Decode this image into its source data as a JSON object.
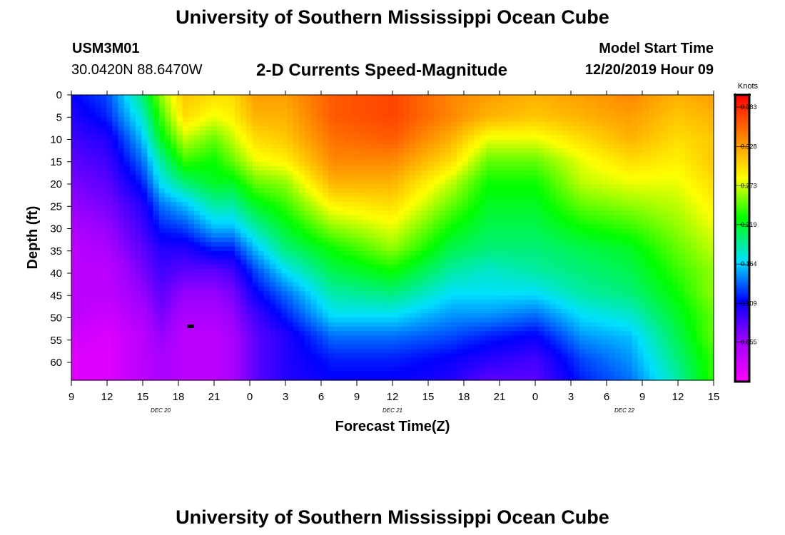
{
  "header": {
    "title": "University of Southern Mississippi Ocean Cube",
    "station_id": "USM3M01",
    "coordinates": "30.0420N 88.6470W",
    "product": "2-D Currents Speed-Magnitude",
    "start_label": "Model Start Time",
    "start_value": "12/20/2019 Hour 09"
  },
  "footer": {
    "title": "University of Southern Mississippi Ocean Cube"
  },
  "chart_data": {
    "type": "heatmap",
    "title": "2-D Currents Speed-Magnitude",
    "xlabel": "Forecast Time(Z)",
    "ylabel": "Depth (ft)",
    "x_range_hours": [
      0,
      54
    ],
    "ylim": [
      0,
      64
    ],
    "x_ticks": [
      "9",
      "12",
      "15",
      "18",
      "21",
      "0",
      "3",
      "6",
      "9",
      "12",
      "15",
      "18",
      "21",
      "0",
      "3",
      "6",
      "9",
      "12",
      "15"
    ],
    "y_ticks": [
      "0",
      "5",
      "10",
      "15",
      "20",
      "25",
      "30",
      "35",
      "40",
      "45",
      "50",
      "55",
      "60"
    ],
    "day_labels": [
      {
        "text": "DEC 20",
        "hour": 7.5
      },
      {
        "text": "DEC 21",
        "hour": 27
      },
      {
        "text": "DEC 22",
        "hour": 46.5
      }
    ],
    "colorbar": {
      "unit": "Knots",
      "min": 0.0,
      "max": 0.4,
      "ticks": [
        "0.383",
        "0.328",
        "0.273",
        "0.219",
        "0.164",
        "0.109",
        "0.055"
      ]
    },
    "marker": {
      "hour": 10,
      "depth": 52
    },
    "columns": [
      {
        "hour": 0,
        "v": [
          0.11,
          0.1,
          0.09,
          0.08,
          0.07,
          0.06,
          0.05,
          0.04,
          0.04,
          0.04,
          0.04,
          0.03,
          0.02,
          0.02
        ]
      },
      {
        "hour": 3,
        "v": [
          0.13,
          0.12,
          0.1,
          0.09,
          0.08,
          0.07,
          0.06,
          0.05,
          0.04,
          0.04,
          0.03,
          0.02,
          0.02,
          0.02
        ]
      },
      {
        "hour": 6,
        "v": [
          0.2,
          0.18,
          0.16,
          0.14,
          0.12,
          0.1,
          0.09,
          0.08,
          0.07,
          0.06,
          0.05,
          0.04,
          0.04,
          0.04
        ]
      },
      {
        "hour": 7.5,
        "v": [
          0.26,
          0.24,
          0.22,
          0.19,
          0.17,
          0.14,
          0.12,
          0.1,
          0.09,
          0.08,
          0.07,
          0.06,
          0.05,
          0.05
        ]
      },
      {
        "hour": 9.5,
        "v": [
          0.31,
          0.3,
          0.27,
          0.24,
          0.2,
          0.16,
          0.13,
          0.1,
          0.08,
          0.06,
          0.05,
          0.04,
          0.04,
          0.04
        ]
      },
      {
        "hour": 12,
        "v": [
          0.3,
          0.28,
          0.25,
          0.23,
          0.22,
          0.19,
          0.16,
          0.12,
          0.08,
          0.06,
          0.05,
          0.04,
          0.04,
          0.04
        ]
      },
      {
        "hour": 13.5,
        "v": [
          0.3,
          0.29,
          0.27,
          0.25,
          0.22,
          0.19,
          0.16,
          0.12,
          0.09,
          0.07,
          0.06,
          0.05,
          0.05,
          0.05
        ]
      },
      {
        "hour": 15.5,
        "v": [
          0.33,
          0.32,
          0.3,
          0.28,
          0.25,
          0.22,
          0.19,
          0.16,
          0.13,
          0.11,
          0.09,
          0.08,
          0.08,
          0.08
        ]
      },
      {
        "hour": 18,
        "v": [
          0.33,
          0.32,
          0.31,
          0.29,
          0.26,
          0.24,
          0.22,
          0.2,
          0.17,
          0.14,
          0.12,
          0.1,
          0.1,
          0.1
        ]
      },
      {
        "hour": 22,
        "v": [
          0.36,
          0.36,
          0.35,
          0.34,
          0.32,
          0.29,
          0.26,
          0.23,
          0.21,
          0.19,
          0.17,
          0.14,
          0.12,
          0.11
        ]
      },
      {
        "hour": 27,
        "v": [
          0.37,
          0.37,
          0.36,
          0.34,
          0.32,
          0.3,
          0.28,
          0.26,
          0.23,
          0.2,
          0.17,
          0.14,
          0.12,
          0.11
        ]
      },
      {
        "hour": 32,
        "v": [
          0.34,
          0.34,
          0.32,
          0.3,
          0.27,
          0.25,
          0.23,
          0.21,
          0.19,
          0.17,
          0.15,
          0.13,
          0.11,
          0.1
        ]
      },
      {
        "hour": 35,
        "v": [
          0.33,
          0.32,
          0.28,
          0.25,
          0.23,
          0.22,
          0.21,
          0.2,
          0.18,
          0.17,
          0.15,
          0.12,
          0.1,
          0.08
        ]
      },
      {
        "hour": 39,
        "v": [
          0.32,
          0.31,
          0.28,
          0.25,
          0.23,
          0.22,
          0.21,
          0.2,
          0.19,
          0.17,
          0.14,
          0.11,
          0.09,
          0.08
        ]
      },
      {
        "hour": 43,
        "v": [
          0.33,
          0.32,
          0.3,
          0.28,
          0.27,
          0.25,
          0.23,
          0.21,
          0.2,
          0.19,
          0.17,
          0.15,
          0.13,
          0.12
        ]
      },
      {
        "hour": 47,
        "v": [
          0.34,
          0.33,
          0.32,
          0.3,
          0.28,
          0.26,
          0.24,
          0.22,
          0.21,
          0.2,
          0.18,
          0.16,
          0.15,
          0.14
        ]
      },
      {
        "hour": 51,
        "v": [
          0.32,
          0.31,
          0.3,
          0.29,
          0.28,
          0.27,
          0.26,
          0.25,
          0.24,
          0.23,
          0.22,
          0.21,
          0.2,
          0.19
        ]
      },
      {
        "hour": 54,
        "v": [
          0.33,
          0.32,
          0.31,
          0.31,
          0.3,
          0.29,
          0.28,
          0.27,
          0.26,
          0.26,
          0.25,
          0.25,
          0.24,
          0.24
        ]
      }
    ]
  }
}
